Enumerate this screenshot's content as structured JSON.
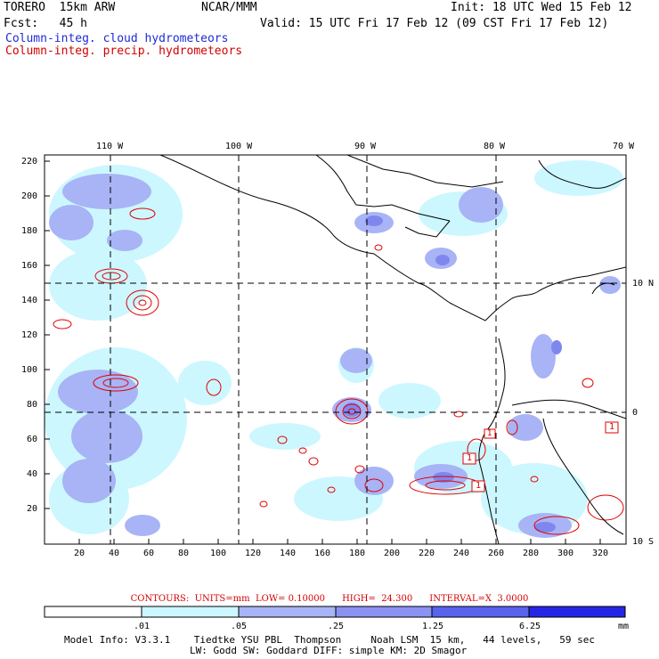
{
  "header": {
    "model": "TORERO  15km ARW",
    "org": "NCAR/MMM",
    "init": "Init: 18 UTC Wed 15 Feb 12",
    "fcst": "Fcst:   45 h",
    "valid": "Valid: 15 UTC Fri 17 Feb 12 (09 CST Fri 17 Feb 12)",
    "field_cloud": "Column-integ. cloud hydrometeors",
    "field_precip": "Column-integ. precip. hydrometeors"
  },
  "map": {
    "top_lon_labels": [
      "110 W",
      "100 W",
      "90 W",
      "80 W",
      "70 W"
    ],
    "right_lat_labels": [
      "10 N",
      "0",
      "10 S"
    ],
    "left_y_ticks": [
      "220",
      "200",
      "180",
      "160",
      "140",
      "120",
      "100",
      "80",
      "60",
      "40",
      "20"
    ],
    "bottom_x_ticks": [
      "20",
      "40",
      "60",
      "80",
      "100",
      "120",
      "140",
      "160",
      "180",
      "200",
      "220",
      "240",
      "260",
      "280",
      "300",
      "320"
    ],
    "box_labels": [
      "1",
      "1",
      "1",
      "1"
    ],
    "colors": {
      "land": "#000000",
      "grid": "#000000",
      "contour": "#e00000",
      "cloud_light": "#ccf7ff",
      "cloud_mid": "#a8b4f5",
      "cloud_dark": "#7f87ef"
    }
  },
  "legend": {
    "contour_info": "CONTOURS:  UNITS=mm  LOW= 0.10000      HIGH=  24.300      INTERVAL=X  3.0000",
    "labels": [
      ".01",
      ".05",
      ".25",
      "1.25",
      "6.25"
    ],
    "unit": "mm",
    "colors": [
      "#ffffff",
      "#ccf7ff",
      "#a8b4f5",
      "#8b92f2",
      "#5a63ed",
      "#2525e8"
    ]
  },
  "footer": {
    "line1": "Model Info: V3.3.1    Tiedtke YSU PBL  Thompson     Noah LSM  15 km,   44 levels,   59 sec",
    "line2": "LW: Godd SW: Goddard DIFF: simple KM: 2D Smagor"
  }
}
